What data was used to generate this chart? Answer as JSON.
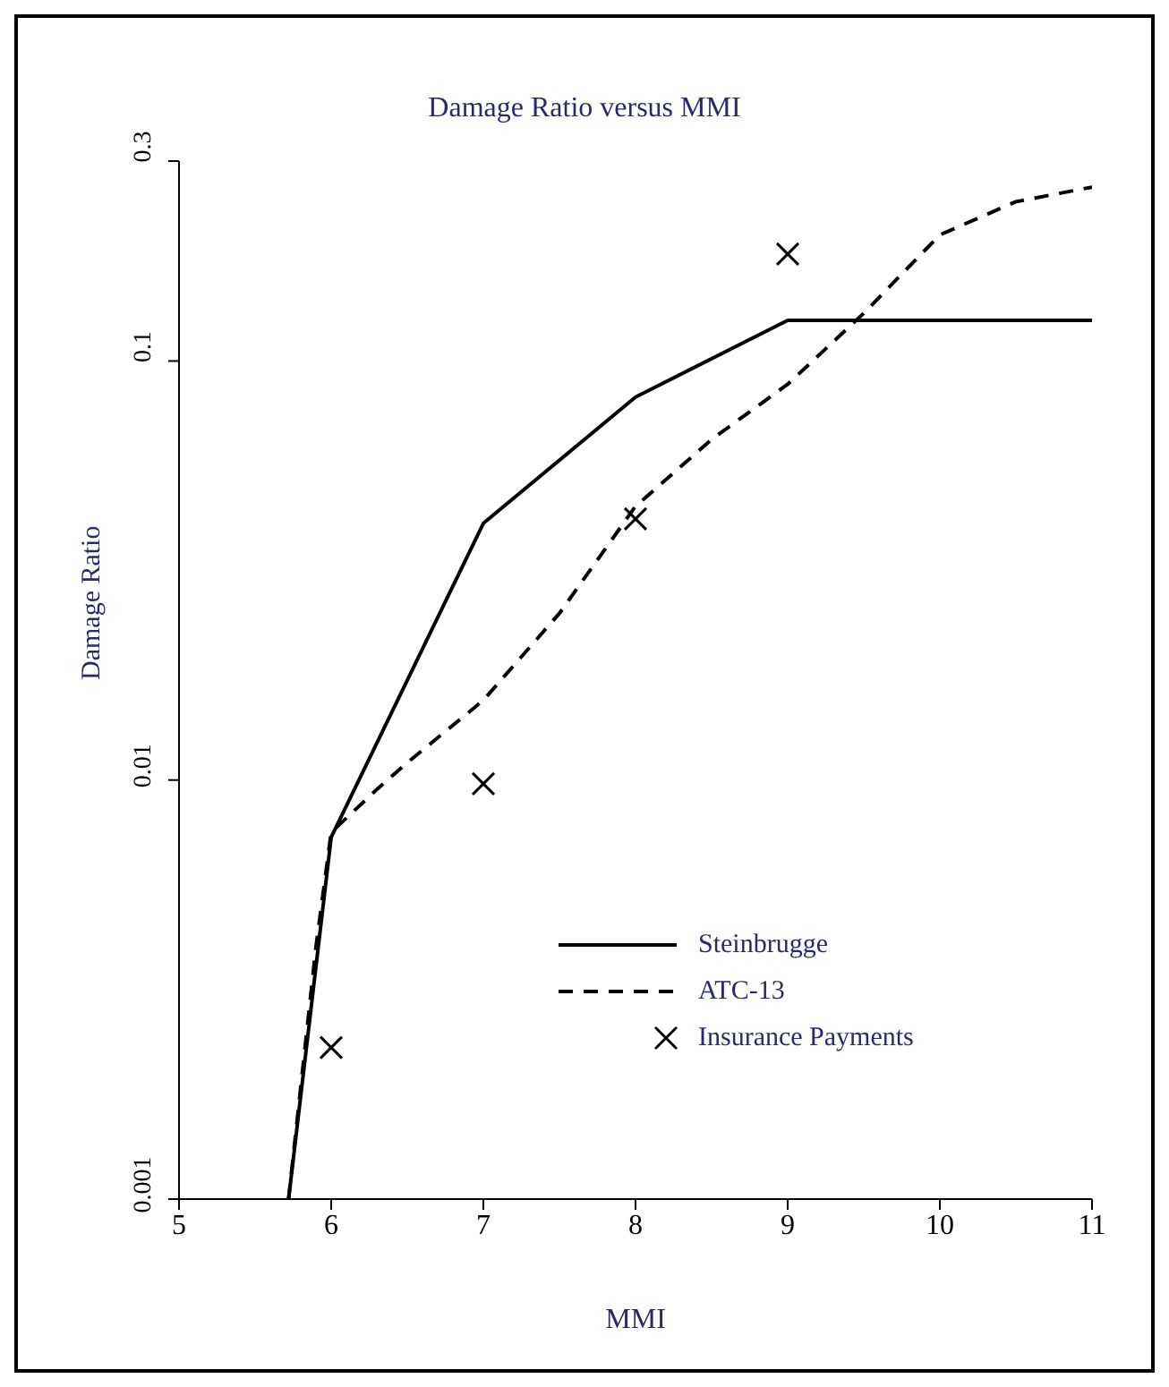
{
  "chart_data": {
    "type": "line",
    "title": "Damage Ratio versus MMI",
    "xlabel": "MMI",
    "ylabel": "Damage Ratio",
    "log": "y",
    "xlim": [
      5,
      11
    ],
    "xticks": [
      5,
      6,
      7,
      8,
      9,
      10,
      11
    ],
    "ylim": [
      0.001,
      0.3
    ],
    "yticks": [
      0.001,
      0.01,
      0.1,
      0.3
    ],
    "grid": false,
    "legend": "bottom right",
    "series": [
      {
        "name": "Steinbrugge",
        "color": "#000000",
        "line_style": "solid",
        "marker": "none",
        "x": [
          5.72,
          6,
          7,
          8,
          9,
          11
        ],
        "values": [
          0.001,
          0.0073,
          0.041,
          0.082,
          0.125,
          0.125
        ]
      },
      {
        "name": "ATC-13",
        "color": "#000000",
        "line_style": "dashed",
        "marker": "none",
        "x": [
          5.72,
          5.9,
          6,
          6.3,
          6.5,
          7,
          7.5,
          8,
          8.5,
          9,
          9.5,
          10,
          10.5,
          11
        ],
        "values": [
          0.001,
          0.004,
          0.0075,
          0.0095,
          0.011,
          0.0155,
          0.025,
          0.045,
          0.065,
          0.088,
          0.13,
          0.2,
          0.24,
          0.26
        ]
      },
      {
        "name": "Insurance Payments",
        "type": "scatter",
        "color": "#000000",
        "marker": "cross",
        "x": [
          6,
          7,
          8,
          9
        ],
        "values": [
          0.0023,
          0.0098,
          0.042,
          0.18
        ]
      }
    ]
  }
}
